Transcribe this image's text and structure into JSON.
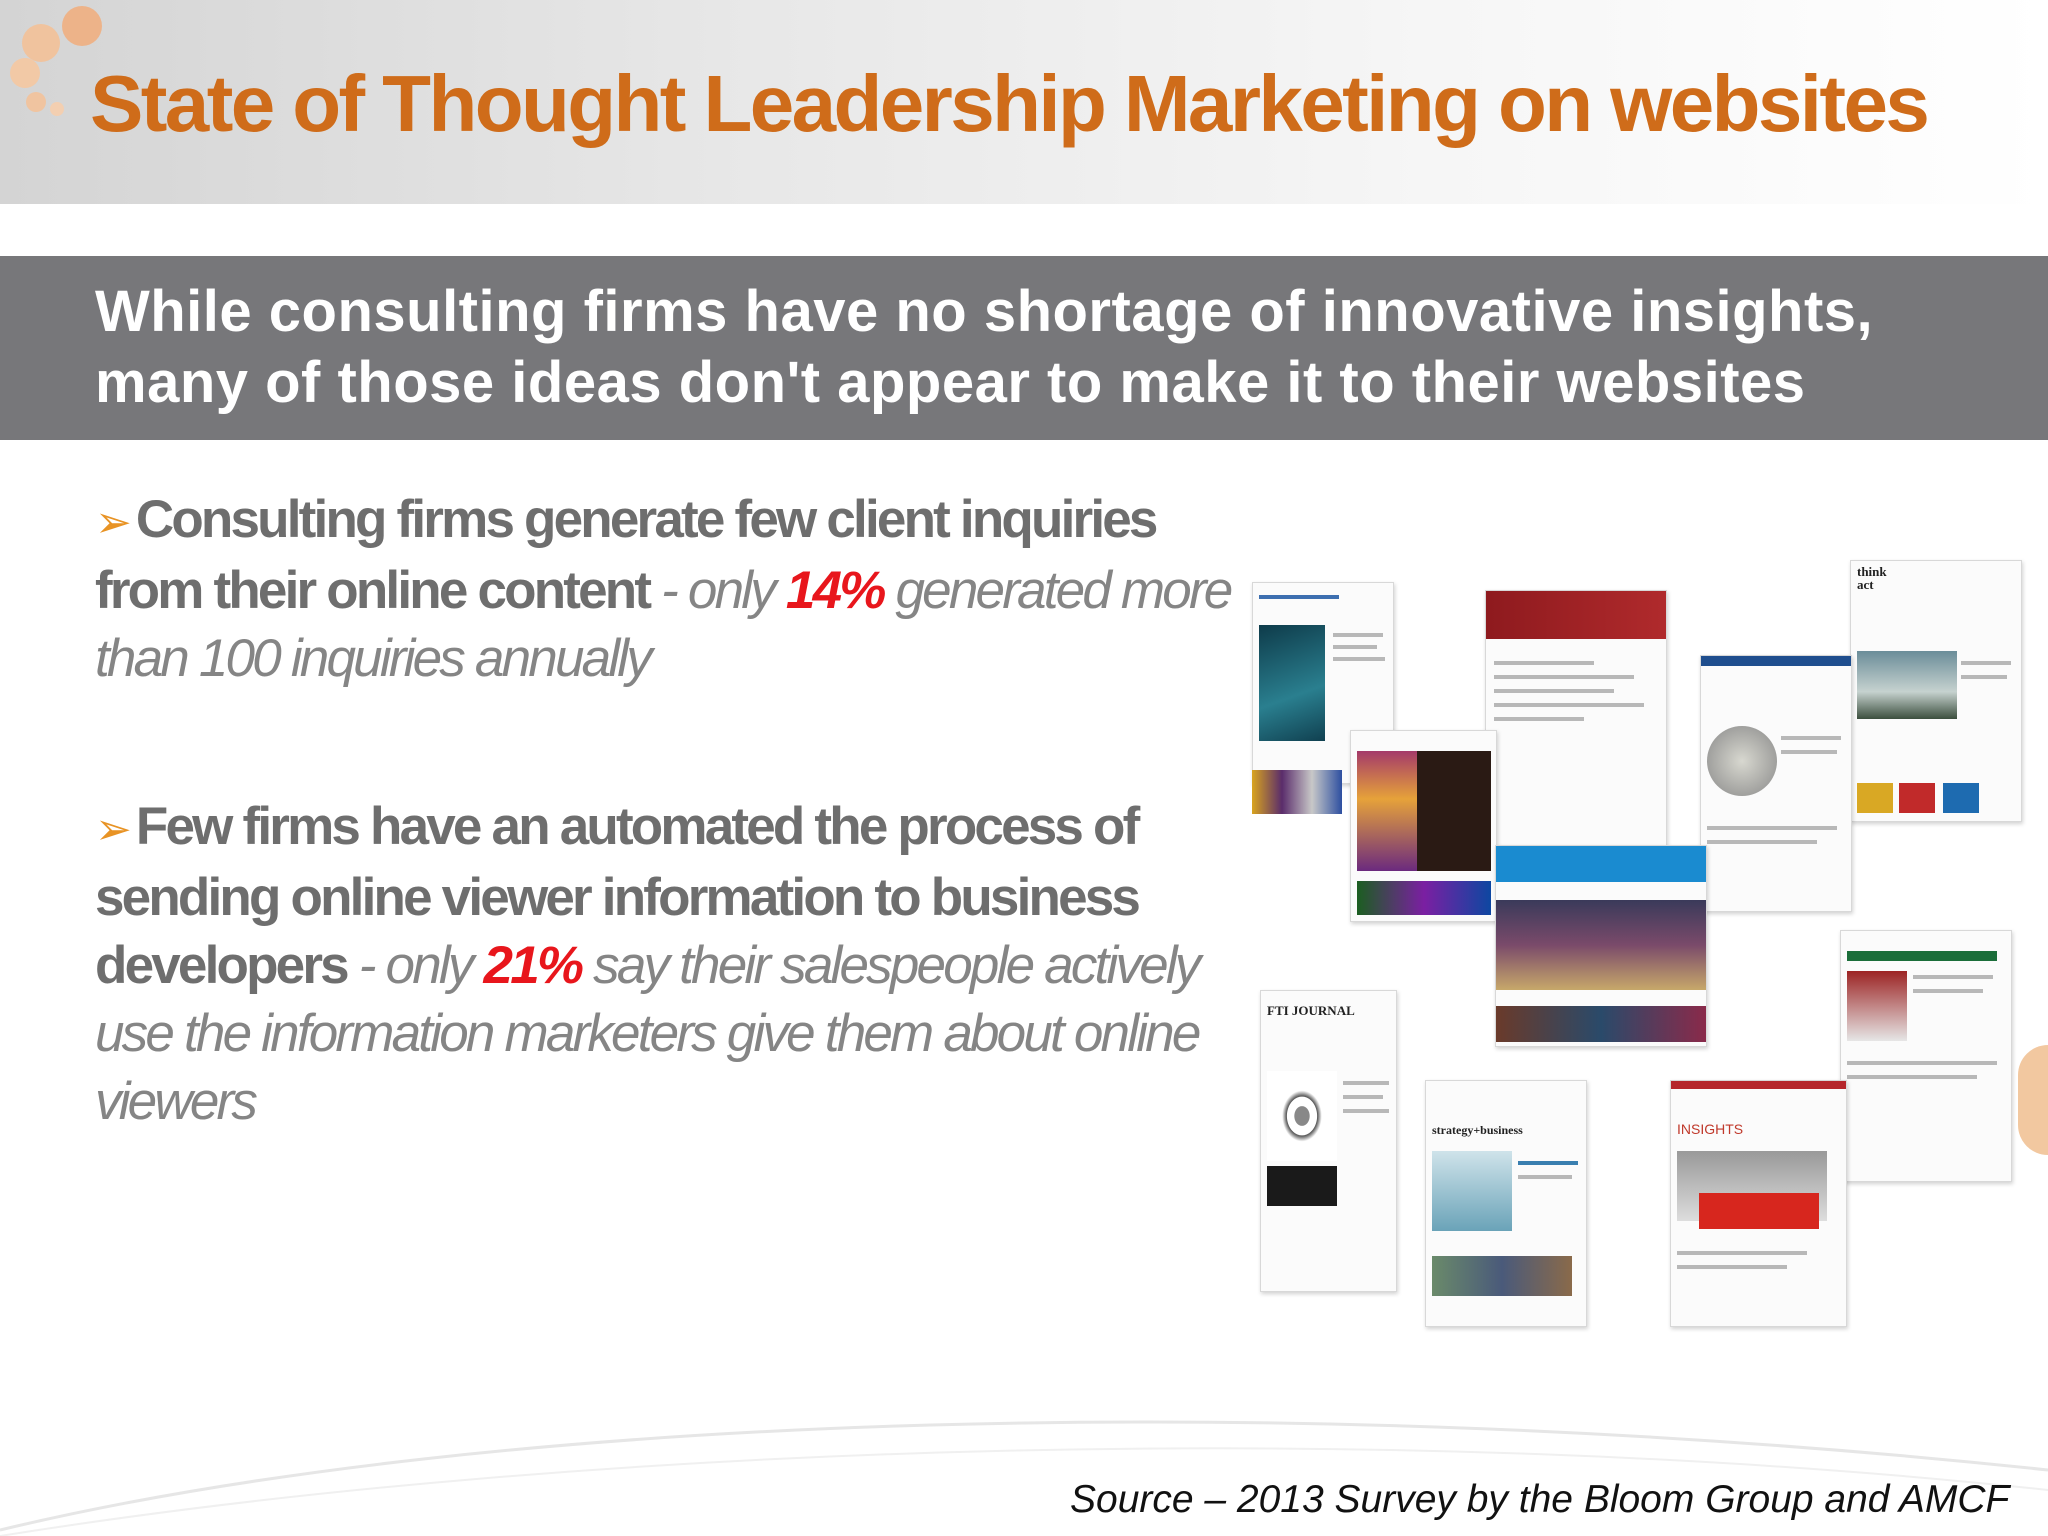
{
  "slide": {
    "title": "State of Thought Leadership Marketing on websites",
    "banner": "While consulting firms have no shortage of innovative insights, many of those ideas don't appear to make it to their websites",
    "colors": {
      "title": "#cf6c1a",
      "banner": "#77777a",
      "stat": "#e8161c",
      "arrow": "#e89324"
    }
  },
  "bullets": [
    {
      "icon": "arrow-bullet-icon",
      "arrow": "➢",
      "strong": "Consulting firms generate few client inquiries from their online content",
      "lead": " - only ",
      "stat": "14%",
      "rest": " generated more than 100 inquiries annually"
    },
    {
      "icon": "arrow-bullet-icon",
      "arrow": "➢",
      "strong": "Few firms have an automated the process of sending online viewer information to business developers",
      "lead": " - only ",
      "stat": "21%",
      "rest": " say their salespeople actively use the information marketers give them about online viewers"
    }
  ],
  "collage": {
    "mastheads": [
      "think act",
      "FTI JOURNAL",
      "strategy+business",
      "INSIGHTS"
    ]
  },
  "source": "Source – 2013 Survey by the Bloom Group and AMCF"
}
